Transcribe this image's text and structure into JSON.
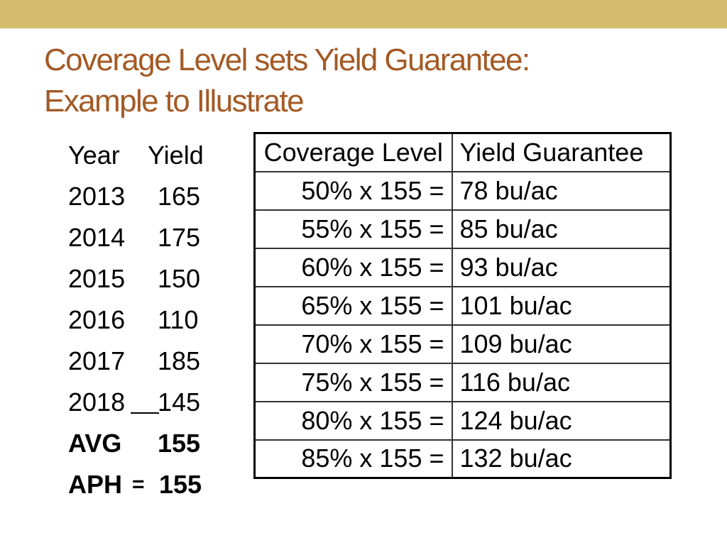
{
  "title": {
    "line1": "Coverage Level sets Yield Guarantee:",
    "line2": "Example to Illustrate"
  },
  "colors": {
    "top_bar": "#d2bb6b",
    "title": "#a35a25"
  },
  "yield_history": {
    "header": {
      "year": "Year",
      "yield": "Yield"
    },
    "rows": [
      {
        "year": "2013",
        "yield": "165"
      },
      {
        "year": "2014",
        "yield": "175"
      },
      {
        "year": "2015",
        "yield": "150"
      },
      {
        "year": "2016",
        "yield": "110"
      },
      {
        "year": "2017",
        "yield": "185"
      },
      {
        "year": "2018",
        "yield": "145"
      }
    ],
    "avg": {
      "label": "AVG",
      "value": "155"
    },
    "aph": {
      "label": "APH",
      "equals": "=",
      "value": "155"
    }
  },
  "coverage_table": {
    "headers": [
      "Coverage Level",
      "Yield Guarantee"
    ],
    "rows": [
      [
        "50% x 155 =",
        "78 bu/ac"
      ],
      [
        "55% x 155 =",
        "85 bu/ac"
      ],
      [
        "60% x 155 =",
        "93 bu/ac"
      ],
      [
        "65% x 155 =",
        "101 bu/ac"
      ],
      [
        "70% x 155 =",
        "109 bu/ac"
      ],
      [
        "75% x 155 =",
        "116 bu/ac"
      ],
      [
        "80% x 155 =",
        "124 bu/ac"
      ],
      [
        "85% x 155 =",
        "132 bu/ac"
      ]
    ]
  }
}
